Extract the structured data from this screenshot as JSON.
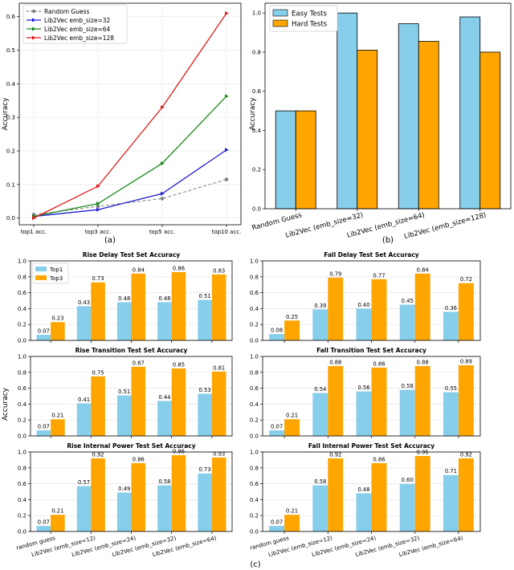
{
  "chart_data": [
    {
      "id": "a",
      "type": "line",
      "title": "",
      "xlabel": "",
      "ylabel": "Accuracy",
      "caption": "(a)",
      "categories": [
        "top1 acc.",
        "top3 acc.",
        "top5 acc.",
        "top10 acc."
      ],
      "ylim": [
        -0.02,
        0.64
      ],
      "yticks": [
        "0.0",
        "0.1",
        "0.2",
        "0.3",
        "0.4",
        "0.5",
        "0.6"
      ],
      "ytick_values": [
        0,
        0.1,
        0.2,
        0.3,
        0.4,
        0.5,
        0.6
      ],
      "grid": true,
      "legend": "top-left",
      "series": [
        {
          "name": "Random Guess",
          "values": [
            0.01,
            0.035,
            0.058,
            0.115
          ],
          "color": "#808080",
          "dashed": true
        },
        {
          "name": "Lib2Vec emb_size=32",
          "values": [
            0.005,
            0.025,
            0.073,
            0.203
          ],
          "color": "#1f1fd6",
          "dashed": false
        },
        {
          "name": "Lib2Vec emb_size=64",
          "values": [
            0.005,
            0.043,
            0.163,
            0.363
          ],
          "color": "#1a8a1a",
          "dashed": false
        },
        {
          "name": "Lib2Vec emb_size=128",
          "values": [
            0.0,
            0.095,
            0.33,
            0.61
          ],
          "color": "#e01a1a",
          "dashed": false
        }
      ]
    },
    {
      "id": "b",
      "type": "bar",
      "title": "",
      "xlabel": "",
      "ylabel": "Accuracy",
      "caption": "(b)",
      "categories": [
        "Random Guess",
        "Lib2Vec (emb_size=32)",
        "Lib2Vec (emb_size=64)",
        "Lib2Vec (emb_size=128)"
      ],
      "ylim": [
        0,
        1.05
      ],
      "yticks": [
        "0.0",
        "0.2",
        "0.4",
        "0.6",
        "0.8",
        "1.0"
      ],
      "ytick_values": [
        0,
        0.2,
        0.4,
        0.6,
        0.8,
        1.0
      ],
      "grid": false,
      "legend": "top-left",
      "series": [
        {
          "name": "Easy Tests",
          "values": [
            0.5,
            1.0,
            0.945,
            0.98
          ],
          "color": "#87ceeb"
        },
        {
          "name": "Hard Tests",
          "values": [
            0.5,
            0.81,
            0.855,
            0.8
          ],
          "color": "#ffa500"
        }
      ]
    },
    {
      "id": "c1",
      "type": "bar",
      "title": "Rise Delay Test Set Accuracy",
      "ylabel": "",
      "categories": [
        "random guess",
        "Lib2Vec (emb_size=12)",
        "Lib2Vec (emb_size=24)",
        "Lib2Vec (emb_size=32)",
        "Lib2Vec (emb_size=64)"
      ],
      "ylim": [
        0,
        1.0
      ],
      "yticks": [
        "0.0",
        "0.2",
        "0.4",
        "0.6",
        "0.8",
        "1.0"
      ],
      "ytick_values": [
        0,
        0.2,
        0.4,
        0.6,
        0.8,
        1.0
      ],
      "legend": "top-left",
      "series": [
        {
          "name": "Top1",
          "values": [
            0.07,
            0.43,
            0.48,
            0.48,
            0.51
          ],
          "labels": [
            "0.07",
            "0.43",
            "0.48",
            "0.48",
            "0.51"
          ],
          "color": "#87ceeb"
        },
        {
          "name": "Top3",
          "values": [
            0.23,
            0.73,
            0.84,
            0.86,
            0.83
          ],
          "labels": [
            "0.23",
            "0.73",
            "0.84",
            "0.86",
            "0.83"
          ],
          "color": "#ffa500"
        }
      ]
    },
    {
      "id": "c2",
      "type": "bar",
      "title": "Fall Delay Test Set Accuracy",
      "ylabel": "",
      "categories": [
        "random guess",
        "Lib2Vec (emb_size=12)",
        "Lib2Vec (emb_size=24)",
        "Lib2Vec (emb_size=32)",
        "Lib2Vec (emb_size=64)"
      ],
      "ylim": [
        0,
        1.0
      ],
      "yticks": [
        "0.0",
        "0.2",
        "0.4",
        "0.6",
        "0.8",
        "1.0"
      ],
      "ytick_values": [
        0,
        0.2,
        0.4,
        0.6,
        0.8,
        1.0
      ],
      "legend": "",
      "series": [
        {
          "name": "Top1",
          "values": [
            0.08,
            0.39,
            0.4,
            0.45,
            0.36
          ],
          "labels": [
            "0.08",
            "0.39",
            "0.40",
            "0.45",
            "0.36"
          ],
          "color": "#87ceeb"
        },
        {
          "name": "Top3",
          "values": [
            0.25,
            0.79,
            0.77,
            0.84,
            0.72
          ],
          "labels": [
            "0.25",
            "0.79",
            "0.77",
            "0.84",
            "0.72"
          ],
          "color": "#ffa500"
        }
      ]
    },
    {
      "id": "c3",
      "type": "bar",
      "title": "Rise Transition Test Set Accuracy",
      "ylabel": "Accuracy",
      "categories": [
        "random guess",
        "Lib2Vec (emb_size=12)",
        "Lib2Vec (emb_size=24)",
        "Lib2Vec (emb_size=32)",
        "Lib2Vec (emb_size=64)"
      ],
      "ylim": [
        0,
        1.0
      ],
      "yticks": [
        "0.0",
        "0.2",
        "0.4",
        "0.6",
        "0.8",
        "1.0"
      ],
      "ytick_values": [
        0,
        0.2,
        0.4,
        0.6,
        0.8,
        1.0
      ],
      "legend": "",
      "series": [
        {
          "name": "Top1",
          "values": [
            0.07,
            0.41,
            0.51,
            0.44,
            0.53
          ],
          "labels": [
            "0.07",
            "0.41",
            "0.51",
            "0.44",
            "0.53"
          ],
          "color": "#87ceeb"
        },
        {
          "name": "Top3",
          "values": [
            0.21,
            0.75,
            0.87,
            0.85,
            0.81
          ],
          "labels": [
            "0.21",
            "0.75",
            "0.87",
            "0.85",
            "0.81"
          ],
          "color": "#ffa500"
        }
      ]
    },
    {
      "id": "c4",
      "type": "bar",
      "title": "Fall Transition Test Set Accuracy",
      "ylabel": "",
      "categories": [
        "random guess",
        "Lib2Vec (emb_size=12)",
        "Lib2Vec (emb_size=24)",
        "Lib2Vec (emb_size=32)",
        "Lib2Vec (emb_size=64)"
      ],
      "ylim": [
        0,
        1.0
      ],
      "yticks": [
        "0.0",
        "0.2",
        "0.4",
        "0.6",
        "0.8",
        "1.0"
      ],
      "ytick_values": [
        0,
        0.2,
        0.4,
        0.6,
        0.8,
        1.0
      ],
      "legend": "",
      "series": [
        {
          "name": "Top1",
          "values": [
            0.07,
            0.54,
            0.56,
            0.58,
            0.55
          ],
          "labels": [
            "0.07",
            "0.54",
            "0.56",
            "0.58",
            "0.55"
          ],
          "color": "#87ceeb"
        },
        {
          "name": "Top3",
          "values": [
            0.21,
            0.88,
            0.86,
            0.88,
            0.89
          ],
          "labels": [
            "0.21",
            "0.88",
            "0.86",
            "0.88",
            "0.89"
          ],
          "color": "#ffa500"
        }
      ]
    },
    {
      "id": "c5",
      "type": "bar",
      "title": "Rise Internal Power Test Set Accuracy",
      "ylabel": "",
      "categories": [
        "random guess",
        "Lib2Vec (emb_size=12)",
        "Lib2Vec (emb_size=24)",
        "Lib2Vec (emb_size=32)",
        "Lib2Vec (emb_size=64)"
      ],
      "ylim": [
        0,
        1.0
      ],
      "yticks": [
        "0.0",
        "0.2",
        "0.4",
        "0.6",
        "0.8",
        "1.0"
      ],
      "ytick_values": [
        0,
        0.2,
        0.4,
        0.6,
        0.8,
        1.0
      ],
      "legend": "",
      "series": [
        {
          "name": "Top1",
          "values": [
            0.07,
            0.57,
            0.49,
            0.58,
            0.73
          ],
          "labels": [
            "0.07",
            "0.57",
            "0.49",
            "0.58",
            "0.73"
          ],
          "color": "#87ceeb"
        },
        {
          "name": "Top3",
          "values": [
            0.21,
            0.92,
            0.86,
            0.96,
            0.93
          ],
          "labels": [
            "0.21",
            "0.92",
            "0.86",
            "0.96",
            "0.93"
          ],
          "color": "#ffa500"
        }
      ]
    },
    {
      "id": "c6",
      "type": "bar",
      "title": "Fall Internal Power Test Set Accuracy",
      "ylabel": "",
      "categories": [
        "random guess",
        "Lib2Vec (emb_size=12)",
        "Lib2Vec (emb_size=24)",
        "Lib2Vec (emb_size=32)",
        "Lib2Vec (emb_size=64)"
      ],
      "ylim": [
        0,
        1.0
      ],
      "yticks": [
        "0.0",
        "0.2",
        "0.4",
        "0.6",
        "0.8",
        "1.0"
      ],
      "ytick_values": [
        0,
        0.2,
        0.4,
        0.6,
        0.8,
        1.0
      ],
      "legend": "",
      "series": [
        {
          "name": "Top1",
          "values": [
            0.07,
            0.58,
            0.48,
            0.6,
            0.71
          ],
          "labels": [
            "0.07",
            "0.58",
            "0.48",
            "0.60",
            "0.71"
          ],
          "color": "#87ceeb"
        },
        {
          "name": "Top3",
          "values": [
            0.21,
            0.92,
            0.86,
            0.95,
            0.92
          ],
          "labels": [
            "0.21",
            "0.92",
            "0.86",
            "0.95",
            "0.92"
          ],
          "color": "#ffa500"
        }
      ]
    }
  ],
  "figure": {
    "caption_c": "(c)"
  }
}
